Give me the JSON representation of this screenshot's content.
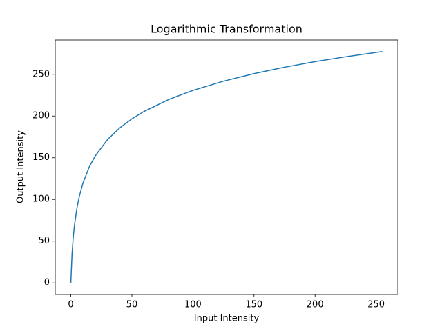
{
  "chart_data": {
    "type": "line",
    "title": "Logarithmic Transformation",
    "x_label": "Input Intensity",
    "y_label": "Output Intensity",
    "x": [
      0,
      1,
      2,
      3,
      5,
      7,
      10,
      15,
      20,
      30,
      40,
      50,
      60,
      80,
      100,
      125,
      150,
      175,
      200,
      225,
      255
    ],
    "series": [
      {
        "color": "#1f77b4",
        "values": [
          0,
          34.66,
          54.93,
          69.31,
          89.59,
          103.97,
          119.89,
          138.63,
          152.22,
          171.7,
          185.68,
          196.59,
          205.54,
          219.72,
          230.76,
          241.81,
          250.86,
          258.53,
          265.16,
          271.02,
          277.26
        ]
      }
    ],
    "xlim": [
      -12.75,
      267.75
    ],
    "xticks": [
      0,
      50,
      100,
      150,
      200,
      250
    ],
    "ylim": [
      -13.86,
      291.12
    ],
    "yticks": [
      0,
      50,
      100,
      150,
      200,
      250
    ],
    "grid": false
  }
}
